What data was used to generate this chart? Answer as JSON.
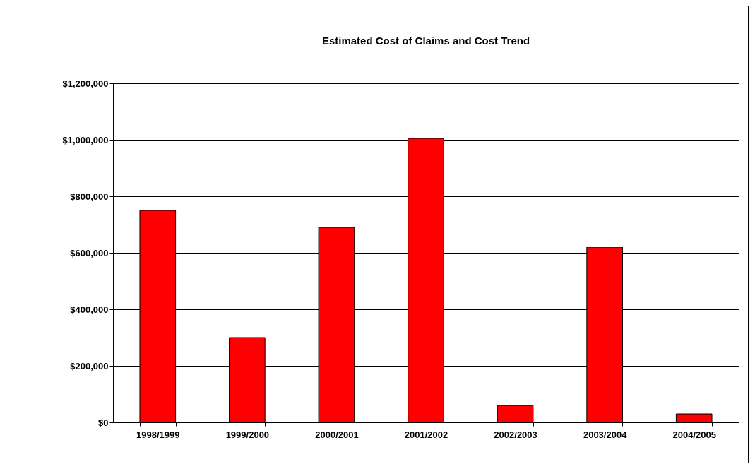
{
  "chart_data": {
    "type": "bar",
    "title": "Estimated Cost of Claims and Cost Trend",
    "categories": [
      "1998/1999",
      "1999/2000",
      "2000/2001",
      "2001/2002",
      "2002/2003",
      "2003/2004",
      "2004/2005"
    ],
    "values": [
      750000,
      300000,
      690000,
      1005000,
      60000,
      620000,
      30000
    ],
    "color": "#ff0000",
    "ylim": [
      0,
      1200000
    ],
    "yticks": [
      {
        "value": 0,
        "label": "$0"
      },
      {
        "value": 200000,
        "label": "$200,000"
      },
      {
        "value": 400000,
        "label": "$400,000"
      },
      {
        "value": 600000,
        "label": "$600,000"
      },
      {
        "value": 800000,
        "label": "$800,000"
      },
      {
        "value": 1000000,
        "label": "$1,000,000"
      },
      {
        "value": 1200000,
        "label": "$1,200,000"
      }
    ],
    "grid": "y"
  }
}
